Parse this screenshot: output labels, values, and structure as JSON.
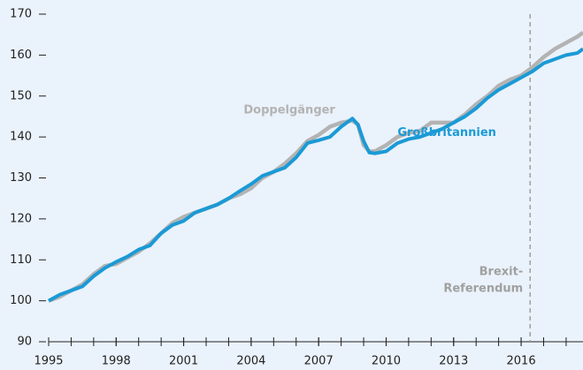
{
  "chart_data": {
    "type": "line",
    "x": [
      1995,
      1995.5,
      1996,
      1996.5,
      1997,
      1997.5,
      1998,
      1998.5,
      1999,
      1999.5,
      2000,
      2000.5,
      2001,
      2001.5,
      2002,
      2002.5,
      2003,
      2003.5,
      2004,
      2004.5,
      2005,
      2005.5,
      2006,
      2006.5,
      2007,
      2007.5,
      2008,
      2008.5,
      2008.75,
      2009,
      2009.25,
      2009.5,
      2010,
      2010.5,
      2011,
      2011.5,
      2012,
      2012.5,
      2013,
      2013.5,
      2014,
      2014.5,
      2015,
      2015.5,
      2016,
      2016.5,
      2017,
      2017.5,
      2018,
      2018.5,
      2018.75
    ],
    "series": [
      {
        "name": "Doppelgänger",
        "color": "#b3b3b3",
        "values": [
          100,
          101,
          102.5,
          104,
          106.5,
          108.5,
          109,
          110.5,
          112,
          114,
          116.5,
          119,
          120.5,
          121.5,
          122.5,
          123.5,
          125,
          126,
          127.5,
          130,
          131.5,
          133.5,
          136,
          139,
          140.5,
          142.5,
          143.5,
          144,
          143,
          138,
          136.5,
          136.5,
          138,
          140,
          141,
          141.5,
          143.5,
          143.5,
          143.5,
          145.5,
          148,
          150,
          152.5,
          154,
          155,
          157,
          159.5,
          161.5,
          163,
          164.5,
          165.5
        ]
      },
      {
        "name": "Großbritannien",
        "color": "#1a9ad6",
        "values": [
          100,
          101.5,
          102.5,
          103.5,
          106,
          108,
          109.5,
          110.8,
          112.5,
          113.5,
          116.5,
          118.5,
          119.5,
          121.5,
          122.5,
          123.5,
          125,
          126.8,
          128.5,
          130.5,
          131.5,
          132.5,
          135,
          138.5,
          139.2,
          140,
          142.5,
          144.5,
          143,
          139,
          136.2,
          136,
          136.5,
          138.5,
          139.5,
          140,
          141,
          142,
          143.5,
          145,
          147,
          149.5,
          151.5,
          153,
          154.5,
          156,
          158,
          159,
          160,
          160.5,
          161.5
        ]
      }
    ],
    "xlim": [
      1995,
      2018.75
    ],
    "xticks": [
      1995,
      1998,
      2001,
      2004,
      2007,
      2010,
      2013,
      2016
    ],
    "xminor_ticks": [
      1995,
      1996,
      1997,
      1998,
      1999,
      2000,
      2001,
      2002,
      2003,
      2004,
      2005,
      2006,
      2007,
      2008,
      2009,
      2010,
      2011,
      2012,
      2013,
      2014,
      2015,
      2016,
      2017,
      2018
    ],
    "ylim": [
      90,
      170
    ],
    "yticks": [
      90,
      100,
      110,
      120,
      130,
      140,
      150,
      160,
      170
    ],
    "vline": {
      "x": 2016.4,
      "label_lines": [
        "Brexit-",
        "Referendum"
      ],
      "color": "#a0a0a0"
    },
    "labels": [
      {
        "series": 0,
        "x": 2005.7,
        "y": 146.5
      },
      {
        "series": 1,
        "x": 2012.7,
        "y": 141
      }
    ]
  }
}
